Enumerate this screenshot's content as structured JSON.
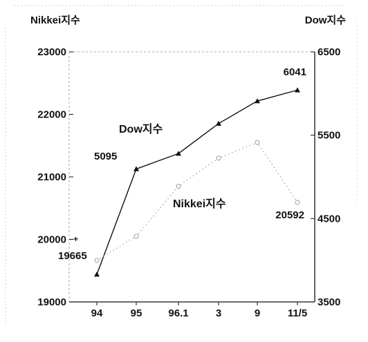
{
  "chart_data": {
    "type": "line",
    "categories": [
      "94",
      "95",
      "96.1",
      "3",
      "9",
      "11/5"
    ],
    "left_axis": {
      "title": "Nikkei지수",
      "ylim": [
        19000,
        23000
      ],
      "ticks": [
        19000,
        20000,
        21000,
        22000,
        23000
      ]
    },
    "right_axis": {
      "title": "Dow지수",
      "ylim": [
        3500,
        6500
      ],
      "ticks": [
        3500,
        4500,
        5500,
        6500
      ]
    },
    "grid": false,
    "series": [
      {
        "name": "Dow지수",
        "axis": "right",
        "values": [
          3830,
          5095,
          5280,
          5640,
          5910,
          6041
        ],
        "line_color": "#111111",
        "line_style": "solid",
        "marker": "triangle"
      },
      {
        "name": "Nikkei지수",
        "axis": "left",
        "values": [
          19665,
          20050,
          20850,
          21300,
          21550,
          20592
        ],
        "line_color": "#9a9a9a",
        "line_style": "dotted",
        "marker": "open-circle"
      }
    ],
    "data_labels": [
      {
        "series": "Dow지수",
        "index": 1,
        "text": "5095"
      },
      {
        "series": "Dow지수",
        "index": 5,
        "text": "6041"
      },
      {
        "series": "Nikkei지수",
        "index": 0,
        "text": "19665"
      },
      {
        "series": "Nikkei지수",
        "index": 5,
        "text": "20592"
      }
    ]
  }
}
